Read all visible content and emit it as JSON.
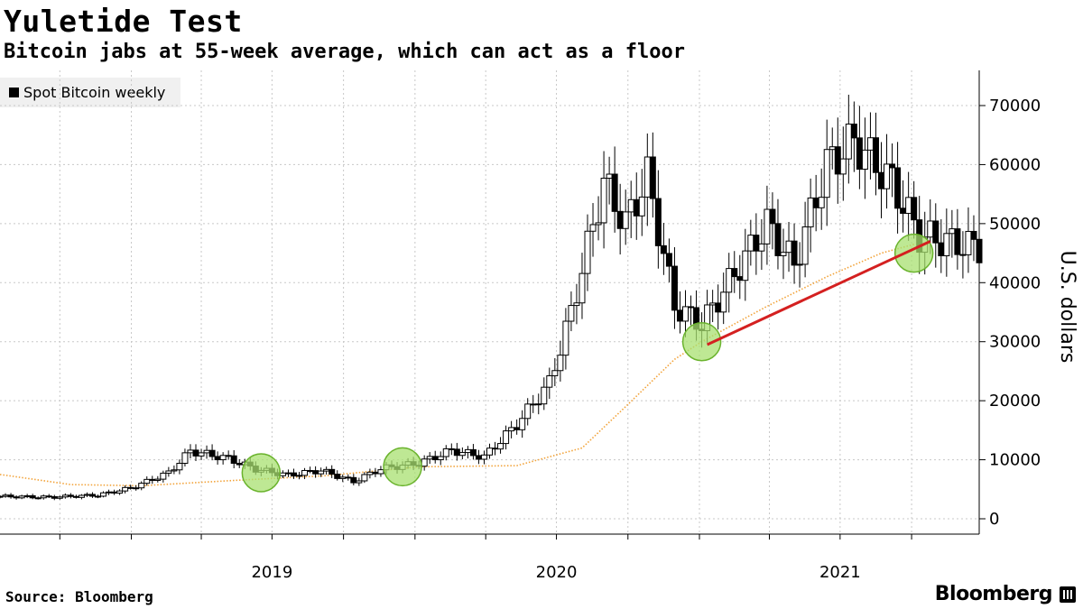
{
  "title": "Yuletide Test",
  "subtitle": "Bitcoin jabs at 55-week average, which can act as a floor",
  "legend_label": "Spot Bitcoin weekly",
  "source": "Source: Bloomberg",
  "brand": "Bloomberg",
  "colors": {
    "candle": "#000000",
    "moving_average": "#f2a33a",
    "trend_line": "#d42020",
    "highlight_fill": "#a8e070",
    "highlight_stroke": "#6ab32d",
    "grid": "#c8c8c8"
  },
  "chart_data": {
    "type": "candlestick",
    "title": "Yuletide Test",
    "subtitle": "Bitcoin jabs at 55-week average, which can act as a floor",
    "ylabel": "U.S. dollars",
    "ylim": [
      0,
      75000
    ],
    "y_ticks": [
      0,
      10000,
      20000,
      30000,
      40000,
      50000,
      60000,
      70000
    ],
    "x_year_labels": [
      "2019",
      "2020",
      "2021"
    ],
    "x_range": [
      "2018-07-16",
      "2021-12-27"
    ],
    "grid": true,
    "legend_position": "top-left",
    "series": [
      {
        "name": "Spot Bitcoin weekly",
        "kind": "weekly candles",
        "points": [
          {
            "date": "2018-07-16",
            "close": 3800
          },
          {
            "date": "2018-09-17",
            "close": 3650
          },
          {
            "date": "2018-11-19",
            "close": 4000
          },
          {
            "date": "2018-12-31",
            "close": 5200
          },
          {
            "date": "2019-02-18",
            "close": 7800
          },
          {
            "date": "2019-03-18",
            "close": 11500
          },
          {
            "date": "2019-05-06",
            "close": 10200
          },
          {
            "date": "2019-06-10",
            "close": 8400
          },
          {
            "date": "2019-07-22",
            "close": 7400
          },
          {
            "date": "2019-09-02",
            "close": 8200
          },
          {
            "date": "2019-10-14",
            "close": 6300
          },
          {
            "date": "2019-11-18",
            "close": 8500
          },
          {
            "date": "2020-01-06",
            "close": 9400
          },
          {
            "date": "2020-02-17",
            "close": 11600
          },
          {
            "date": "2020-03-30",
            "close": 10500
          },
          {
            "date": "2020-05-11",
            "close": 16000
          },
          {
            "date": "2020-06-22",
            "close": 23000
          },
          {
            "date": "2020-07-20",
            "close": 35000
          },
          {
            "date": "2020-08-31",
            "close": 57000
          },
          {
            "date": "2020-09-28",
            "close": 50000
          },
          {
            "date": "2020-10-26",
            "close": 58000
          },
          {
            "date": "2020-11-30",
            "close": 36000
          },
          {
            "date": "2021-01-04",
            "close": 33000
          },
          {
            "date": "2021-02-08",
            "close": 40000
          },
          {
            "date": "2021-03-29",
            "close": 50000
          },
          {
            "date": "2021-05-03",
            "close": 43000
          },
          {
            "date": "2021-06-14",
            "close": 60000
          },
          {
            "date": "2021-07-19",
            "close": 64000
          },
          {
            "date": "2021-09-06",
            "close": 57000
          },
          {
            "date": "2021-10-11",
            "close": 48000
          },
          {
            "date": "2021-11-15",
            "close": 47000
          },
          {
            "date": "2021-12-27",
            "close": 46000
          }
        ]
      },
      {
        "name": "55-week moving average",
        "kind": "dotted line",
        "points": [
          {
            "date": "2018-07-16",
            "value": 7500
          },
          {
            "date": "2018-10-15",
            "value": 5800
          },
          {
            "date": "2019-01-14",
            "value": 5600
          },
          {
            "date": "2019-05-13",
            "value": 6500
          },
          {
            "date": "2019-09-09",
            "value": 7300
          },
          {
            "date": "2020-01-06",
            "value": 8800
          },
          {
            "date": "2020-05-11",
            "value": 9000
          },
          {
            "date": "2020-08-03",
            "value": 12000
          },
          {
            "date": "2020-09-28",
            "value": 19000
          },
          {
            "date": "2020-11-30",
            "value": 27000
          },
          {
            "date": "2021-01-04",
            "value": 30000
          },
          {
            "date": "2021-03-29",
            "value": 36000
          },
          {
            "date": "2021-06-14",
            "value": 41000
          },
          {
            "date": "2021-08-23",
            "value": 45000
          },
          {
            "date": "2021-10-04",
            "value": 46500
          }
        ]
      }
    ],
    "annotations": {
      "highlight_points": [
        {
          "date": "2019-06-17",
          "value": 7800
        },
        {
          "date": "2019-12-16",
          "value": 8800
        },
        {
          "date": "2021-01-04",
          "value": 30000
        },
        {
          "date": "2021-10-04",
          "value": 45000
        }
      ],
      "trend_line": [
        {
          "date": "2021-01-11",
          "value": 29500
        },
        {
          "date": "2021-10-25",
          "value": 47000
        }
      ]
    }
  }
}
